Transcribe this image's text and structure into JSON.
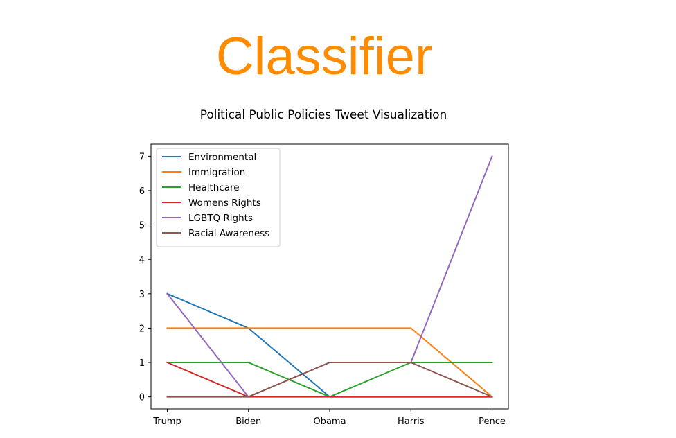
{
  "page": {
    "title": "Classifier"
  },
  "chart_data": {
    "type": "line",
    "title": "Political Public Policies Tweet Visualization",
    "xlabel": "",
    "ylabel": "",
    "categories": [
      "Trump",
      "Biden",
      "Obama",
      "Harris",
      "Pence"
    ],
    "yticks": [
      0,
      1,
      2,
      3,
      4,
      5,
      6,
      7
    ],
    "ylim": [
      -0.35,
      7.35
    ],
    "grid": false,
    "legend_position": "top-left",
    "series": [
      {
        "name": "Environmental",
        "color": "#1f77b4",
        "values": [
          3,
          2,
          0,
          0,
          0
        ]
      },
      {
        "name": "Immigration",
        "color": "#ff7f0e",
        "values": [
          2,
          2,
          2,
          2,
          0
        ]
      },
      {
        "name": "Healthcare",
        "color": "#2ca02c",
        "values": [
          1,
          1,
          0,
          1,
          1
        ]
      },
      {
        "name": "Womens Rights",
        "color": "#d62728",
        "values": [
          1,
          0,
          0,
          0,
          0
        ]
      },
      {
        "name": "LGBTQ Rights",
        "color": "#9467bd",
        "values": [
          3,
          0,
          1,
          1,
          7
        ]
      },
      {
        "name": "Racial Awareness",
        "color": "#8c564b",
        "values": [
          0,
          0,
          1,
          1,
          0
        ]
      }
    ]
  }
}
